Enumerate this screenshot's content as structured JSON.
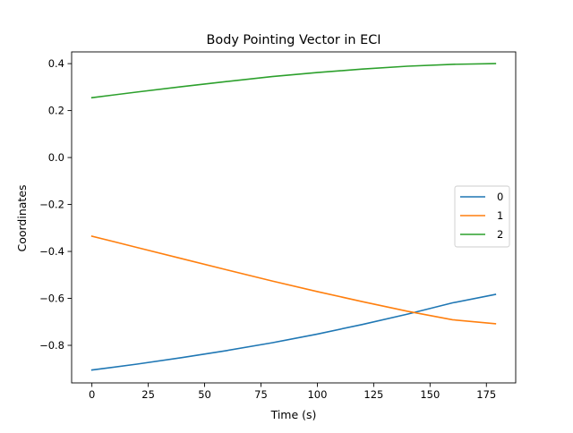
{
  "chart_data": {
    "type": "line",
    "title": "Body Pointing Vector in ECI",
    "xlabel": "Time (s)",
    "ylabel": "Coordinates",
    "xlim": [
      -9,
      188
    ],
    "ylim": [
      -0.96,
      0.45
    ],
    "xticks": [
      0,
      25,
      50,
      75,
      100,
      125,
      150,
      175
    ],
    "xtick_labels": [
      "0",
      "25",
      "50",
      "75",
      "100",
      "125",
      "150",
      "175"
    ],
    "yticks": [
      -0.8,
      -0.6,
      -0.4,
      -0.2,
      0.0,
      0.2,
      0.4
    ],
    "ytick_labels": [
      "−0.8",
      "−0.6",
      "−0.4",
      "−0.2",
      "0.0",
      "0.2",
      "0.4"
    ],
    "grid": false,
    "legend_position": "center-right",
    "x": [
      0,
      20,
      40,
      60,
      80,
      100,
      120,
      140,
      160,
      179
    ],
    "series": [
      {
        "name": "0",
        "color": "#1f77b4",
        "values": [
          -0.905,
          -0.88,
          -0.852,
          -0.822,
          -0.789,
          -0.752,
          -0.711,
          -0.667,
          -0.619,
          -0.583
        ]
      },
      {
        "name": "1",
        "color": "#ff7f0e",
        "values": [
          -0.335,
          -0.383,
          -0.431,
          -0.479,
          -0.526,
          -0.571,
          -0.614,
          -0.655,
          -0.691,
          -0.708
        ]
      },
      {
        "name": "2",
        "color": "#2ca02c",
        "values": [
          0.255,
          0.279,
          0.302,
          0.324,
          0.345,
          0.362,
          0.377,
          0.389,
          0.397,
          0.4
        ]
      }
    ]
  }
}
